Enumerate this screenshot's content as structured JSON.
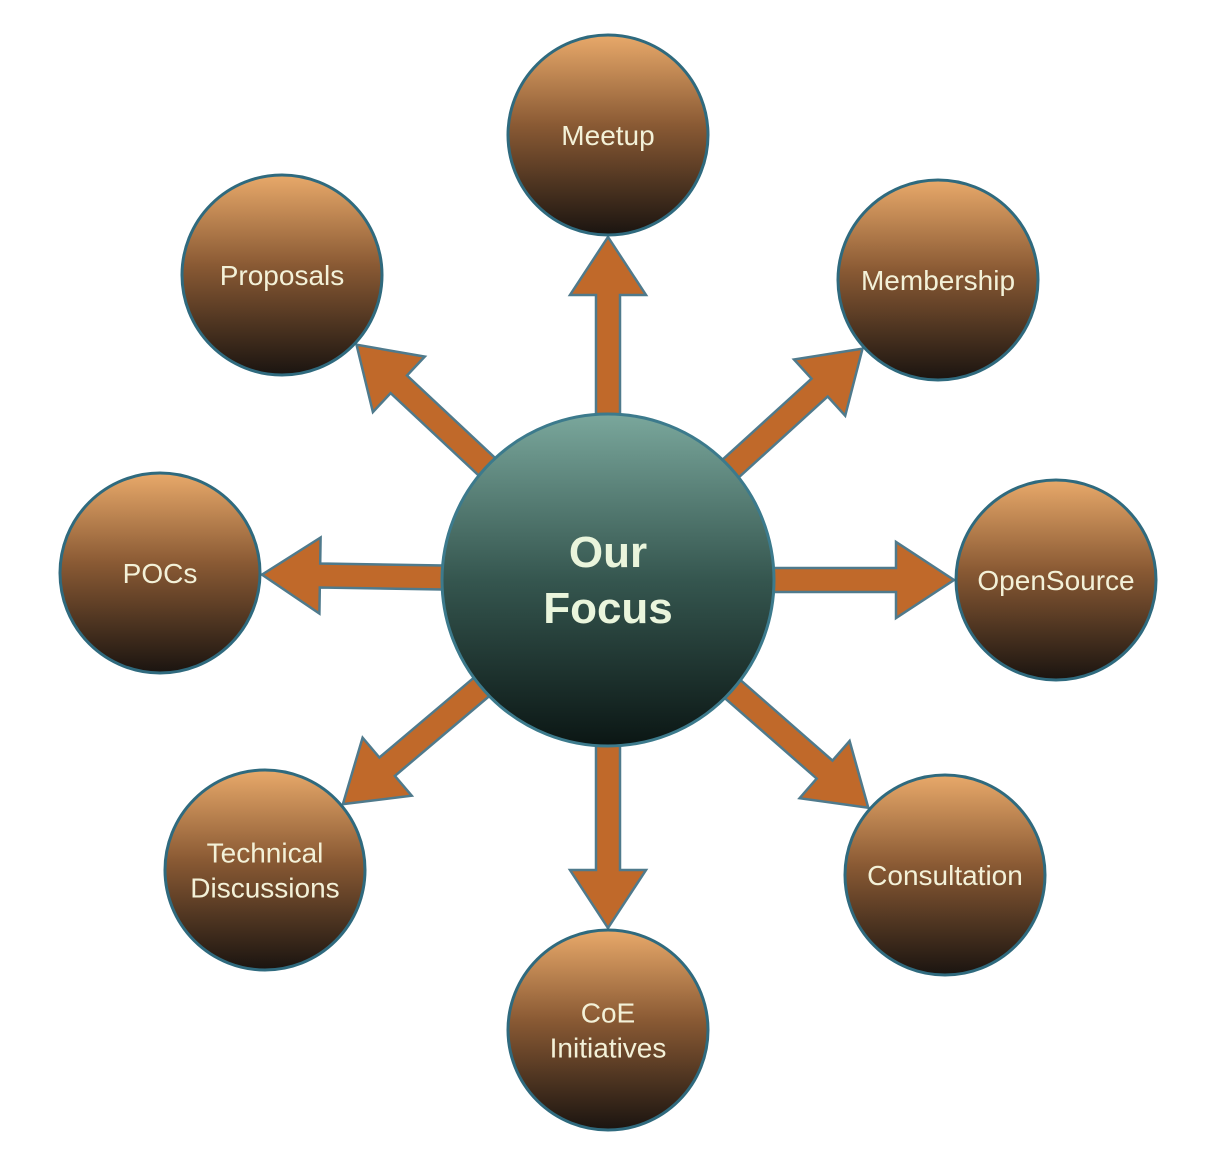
{
  "hub": {
    "lines": [
      "Our",
      "Focus"
    ]
  },
  "nodes": [
    {
      "id": "meetup",
      "lines": [
        "Meetup"
      ]
    },
    {
      "id": "membership",
      "lines": [
        "Membership"
      ]
    },
    {
      "id": "opensource",
      "lines": [
        "OpenSource"
      ]
    },
    {
      "id": "consultation",
      "lines": [
        "Consultation"
      ]
    },
    {
      "id": "coe-initiatives",
      "lines": [
        "CoE",
        "Initiatives"
      ]
    },
    {
      "id": "technical-discussions",
      "lines": [
        "Technical",
        "Discussions"
      ]
    },
    {
      "id": "pocs",
      "lines": [
        "POCs"
      ]
    },
    {
      "id": "proposals",
      "lines": [
        "Proposals"
      ]
    }
  ],
  "colors": {
    "arrow_fill": "#c0692a",
    "arrow_stroke": "#4f7a8c",
    "node_top": "#e8a96a",
    "node_bottom": "#1a1410",
    "node_stroke": "#2f6a7e",
    "hub_top": "#7aa79c",
    "hub_bottom": "#0b1614",
    "hub_stroke": "#3c7a8c",
    "node_text": "#f3f1d8",
    "hub_text": "#eaf5dc"
  }
}
